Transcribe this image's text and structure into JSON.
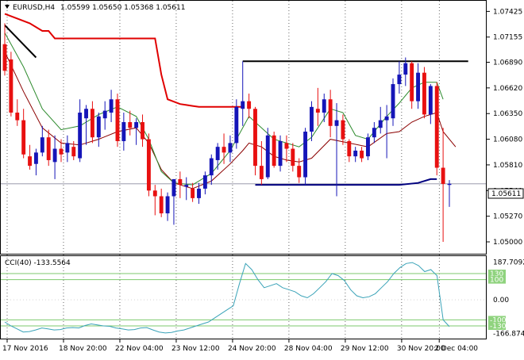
{
  "chart_data": [
    {
      "type": "candlestick",
      "title": "EURUSD,H4",
      "ohlc_header": "1.05599 1.05650 1.05368 1.05611",
      "ylim": [
        1.049,
        1.0752
      ],
      "y_ticks": [
        "1.07425",
        "1.07155",
        "1.06890",
        "1.06620",
        "1.06350",
        "1.06080",
        "1.05810",
        "1.05540",
        "1.05270",
        "1.05000"
      ],
      "current_price": "1.05611",
      "x_ticks": [
        "17 Nov 2016",
        "18 Nov 20:00",
        "22 Nov 04:00",
        "23 Nov 12:00",
        "24 Nov 20:00",
        "28 Nov 04:00",
        "29 Nov 12:00",
        "30 Nov 20:00",
        "2 Dec 04:00"
      ],
      "candles": [
        {
          "o": 1.0708,
          "h": 1.073,
          "l": 1.0675,
          "c": 1.068
        },
        {
          "o": 1.0692,
          "h": 1.07,
          "l": 1.0632,
          "c": 1.0636
        },
        {
          "o": 1.0636,
          "h": 1.065,
          "l": 1.0622,
          "c": 1.0628
        },
        {
          "o": 1.0628,
          "h": 1.064,
          "l": 1.0588,
          "c": 1.0592
        },
        {
          "o": 1.059,
          "h": 1.0602,
          "l": 1.0576,
          "c": 1.058
        },
        {
          "o": 1.0582,
          "h": 1.0598,
          "l": 1.057,
          "c": 1.0594
        },
        {
          "o": 1.0594,
          "h": 1.0622,
          "l": 1.059,
          "c": 1.061
        },
        {
          "o": 1.061,
          "h": 1.0618,
          "l": 1.058,
          "c": 1.0586
        },
        {
          "o": 1.0584,
          "h": 1.0612,
          "l": 1.0566,
          "c": 1.0598
        },
        {
          "o": 1.0598,
          "h": 1.0608,
          "l": 1.0584,
          "c": 1.0592
        },
        {
          "o": 1.0594,
          "h": 1.0612,
          "l": 1.0584,
          "c": 1.0604
        },
        {
          "o": 1.06,
          "h": 1.0606,
          "l": 1.0586,
          "c": 1.059
        },
        {
          "o": 1.0588,
          "h": 1.065,
          "l": 1.0584,
          "c": 1.0636
        },
        {
          "o": 1.063,
          "h": 1.0644,
          "l": 1.0602,
          "c": 1.064
        },
        {
          "o": 1.064,
          "h": 1.0648,
          "l": 1.0604,
          "c": 1.061
        },
        {
          "o": 1.061,
          "h": 1.0636,
          "l": 1.06,
          "c": 1.0632
        },
        {
          "o": 1.063,
          "h": 1.0648,
          "l": 1.0618,
          "c": 1.0638
        },
        {
          "o": 1.0636,
          "h": 1.066,
          "l": 1.0626,
          "c": 1.065
        },
        {
          "o": 1.065,
          "h": 1.0656,
          "l": 1.06,
          "c": 1.0606
        },
        {
          "o": 1.0606,
          "h": 1.0636,
          "l": 1.0596,
          "c": 1.0626
        },
        {
          "o": 1.0626,
          "h": 1.0638,
          "l": 1.0612,
          "c": 1.062
        },
        {
          "o": 1.062,
          "h": 1.063,
          "l": 1.0602,
          "c": 1.0626
        },
        {
          "o": 1.0626,
          "h": 1.0634,
          "l": 1.06,
          "c": 1.0608
        },
        {
          "o": 1.0608,
          "h": 1.0614,
          "l": 1.0548,
          "c": 1.0554
        },
        {
          "o": 1.0554,
          "h": 1.056,
          "l": 1.0528,
          "c": 1.0548
        },
        {
          "o": 1.0548,
          "h": 1.0556,
          "l": 1.0526,
          "c": 1.053
        },
        {
          "o": 1.053,
          "h": 1.0552,
          "l": 1.0522,
          "c": 1.0548
        },
        {
          "o": 1.0548,
          "h": 1.0566,
          "l": 1.0518,
          "c": 1.0566
        },
        {
          "o": 1.0566,
          "h": 1.0574,
          "l": 1.0546,
          "c": 1.056
        },
        {
          "o": 1.0558,
          "h": 1.0568,
          "l": 1.0544,
          "c": 1.056
        },
        {
          "o": 1.0556,
          "h": 1.0562,
          "l": 1.0542,
          "c": 1.0546
        },
        {
          "o": 1.0546,
          "h": 1.0562,
          "l": 1.054,
          "c": 1.0556
        },
        {
          "o": 1.0556,
          "h": 1.0574,
          "l": 1.055,
          "c": 1.057
        },
        {
          "o": 1.057,
          "h": 1.0592,
          "l": 1.056,
          "c": 1.0588
        },
        {
          "o": 1.0586,
          "h": 1.0604,
          "l": 1.0576,
          "c": 1.06
        },
        {
          "o": 1.06,
          "h": 1.0614,
          "l": 1.0582,
          "c": 1.0594
        },
        {
          "o": 1.0594,
          "h": 1.0612,
          "l": 1.0584,
          "c": 1.0604
        },
        {
          "o": 1.0604,
          "h": 1.065,
          "l": 1.0598,
          "c": 1.0642
        },
        {
          "o": 1.064,
          "h": 1.069,
          "l": 1.0622,
          "c": 1.0648
        },
        {
          "o": 1.0648,
          "h": 1.0656,
          "l": 1.063,
          "c": 1.064
        },
        {
          "o": 1.064,
          "h": 1.0642,
          "l": 1.057,
          "c": 1.058
        },
        {
          "o": 1.058,
          "h": 1.0606,
          "l": 1.056,
          "c": 1.0566
        },
        {
          "o": 1.0568,
          "h": 1.062,
          "l": 1.0566,
          "c": 1.0612
        },
        {
          "o": 1.0612,
          "h": 1.0616,
          "l": 1.0578,
          "c": 1.058
        },
        {
          "o": 1.058,
          "h": 1.0612,
          "l": 1.0574,
          "c": 1.0606
        },
        {
          "o": 1.0604,
          "h": 1.0612,
          "l": 1.0584,
          "c": 1.0598
        },
        {
          "o": 1.0598,
          "h": 1.0604,
          "l": 1.0574,
          "c": 1.058
        },
        {
          "o": 1.058,
          "h": 1.0588,
          "l": 1.0562,
          "c": 1.0568
        },
        {
          "o": 1.0568,
          "h": 1.062,
          "l": 1.056,
          "c": 1.0616
        },
        {
          "o": 1.0616,
          "h": 1.0648,
          "l": 1.0606,
          "c": 1.0642
        },
        {
          "o": 1.064,
          "h": 1.0662,
          "l": 1.0622,
          "c": 1.0636
        },
        {
          "o": 1.0636,
          "h": 1.0656,
          "l": 1.0626,
          "c": 1.065
        },
        {
          "o": 1.065,
          "h": 1.066,
          "l": 1.061,
          "c": 1.0622
        },
        {
          "o": 1.0622,
          "h": 1.0646,
          "l": 1.0548,
          "c": 1.0628
        },
        {
          "o": 1.0628,
          "h": 1.0634,
          "l": 1.0602,
          "c": 1.0608
        },
        {
          "o": 1.0606,
          "h": 1.0608,
          "l": 1.0584,
          "c": 1.059
        },
        {
          "o": 1.059,
          "h": 1.06,
          "l": 1.0584,
          "c": 1.0596
        },
        {
          "o": 1.0596,
          "h": 1.06,
          "l": 1.0584,
          "c": 1.0588
        },
        {
          "o": 1.059,
          "h": 1.0614,
          "l": 1.0586,
          "c": 1.061
        },
        {
          "o": 1.061,
          "h": 1.0626,
          "l": 1.0604,
          "c": 1.062
        },
        {
          "o": 1.062,
          "h": 1.0642,
          "l": 1.0614,
          "c": 1.0628
        },
        {
          "o": 1.0628,
          "h": 1.0644,
          "l": 1.0588,
          "c": 1.0632
        },
        {
          "o": 1.063,
          "h": 1.0672,
          "l": 1.0622,
          "c": 1.0666
        },
        {
          "o": 1.0666,
          "h": 1.069,
          "l": 1.0656,
          "c": 1.0676
        },
        {
          "o": 1.0676,
          "h": 1.0694,
          "l": 1.0664,
          "c": 1.0688
        },
        {
          "o": 1.0688,
          "h": 1.069,
          "l": 1.064,
          "c": 1.0648
        },
        {
          "o": 1.0648,
          "h": 1.0688,
          "l": 1.064,
          "c": 1.0678
        },
        {
          "o": 1.0678,
          "h": 1.0684,
          "l": 1.063,
          "c": 1.0634
        },
        {
          "o": 1.0634,
          "h": 1.0666,
          "l": 1.0624,
          "c": 1.0664
        },
        {
          "o": 1.0664,
          "h": 1.0668,
          "l": 1.057,
          "c": 1.0578
        },
        {
          "o": 1.0578,
          "h": 1.062,
          "l": 1.05,
          "c": 1.0561
        },
        {
          "o": 1.05599,
          "h": 1.0565,
          "l": 1.05368,
          "c": 1.05611
        }
      ],
      "overlays": [
        {
          "name": "red-stepped-line",
          "color": "#e00000",
          "points": [
            [
              0,
              1.074
            ],
            [
              2,
              1.0735
            ],
            [
              4,
              1.073
            ],
            [
              6,
              1.0722
            ],
            [
              7,
              1.0722
            ],
            [
              8,
              1.0714
            ],
            [
              24,
              1.0714
            ],
            [
              25,
              1.0676
            ],
            [
              26,
              1.065
            ],
            [
              28,
              1.0645
            ],
            [
              29,
              1.0644
            ],
            [
              30,
              1.0643
            ],
            [
              31,
              1.0642
            ],
            [
              38,
              1.0642
            ]
          ]
        },
        {
          "name": "dark-red-ma",
          "color": "#8b0000",
          "points": [
            [
              0,
              1.07
            ],
            [
              3,
              1.0658
            ],
            [
              6,
              1.062
            ],
            [
              9,
              1.0604
            ],
            [
              12,
              1.0602
            ],
            [
              15,
              1.0608
            ],
            [
              18,
              1.0616
            ],
            [
              21,
              1.062
            ],
            [
              23,
              1.0604
            ],
            [
              25,
              1.0576
            ],
            [
              27,
              1.0562
            ],
            [
              30,
              1.0556
            ],
            [
              33,
              1.0564
            ],
            [
              36,
              1.0582
            ],
            [
              38,
              1.0596
            ],
            [
              39,
              1.0604
            ],
            [
              41,
              1.06
            ],
            [
              43,
              1.059
            ],
            [
              45,
              1.0586
            ],
            [
              47,
              1.0584
            ],
            [
              49,
              1.0588
            ],
            [
              52,
              1.0608
            ],
            [
              55,
              1.0604
            ],
            [
              58,
              1.06
            ],
            [
              61,
              1.0614
            ],
            [
              63,
              1.0616
            ],
            [
              65,
              1.0626
            ],
            [
              67,
              1.0632
            ],
            [
              69,
              1.0636
            ],
            [
              70,
              1.0616
            ],
            [
              72,
              1.06
            ]
          ]
        },
        {
          "name": "green-ma",
          "color": "#2e8b2e",
          "points": [
            [
              0,
              1.072
            ],
            [
              3,
              1.0684
            ],
            [
              6,
              1.064
            ],
            [
              9,
              1.0618
            ],
            [
              12,
              1.0622
            ],
            [
              15,
              1.0634
            ],
            [
              18,
              1.0642
            ],
            [
              21,
              1.0632
            ],
            [
              23,
              1.0608
            ],
            [
              25,
              1.0574
            ],
            [
              27,
              1.0562
            ],
            [
              30,
              1.056
            ],
            [
              33,
              1.0572
            ],
            [
              36,
              1.0596
            ],
            [
              38,
              1.062
            ],
            [
              39,
              1.0632
            ],
            [
              41,
              1.062
            ],
            [
              43,
              1.0608
            ],
            [
              45,
              1.0604
            ],
            [
              47,
              1.06
            ],
            [
              49,
              1.061
            ],
            [
              51,
              1.063
            ],
            [
              52,
              1.064
            ],
            [
              54,
              1.0636
            ],
            [
              56,
              1.0612
            ],
            [
              58,
              1.0608
            ],
            [
              61,
              1.0632
            ],
            [
              63,
              1.0646
            ],
            [
              65,
              1.0662
            ],
            [
              67,
              1.0668
            ],
            [
              69,
              1.0668
            ],
            [
              70,
              1.065
            ]
          ]
        },
        {
          "name": "navy-support-line",
          "color": "#00007f",
          "points": [
            [
              40,
              1.056
            ],
            [
              63,
              1.056
            ],
            [
              66,
              1.0562
            ],
            [
              68,
              1.0566
            ],
            [
              69,
              1.0566
            ]
          ]
        },
        {
          "name": "black-resistance-line",
          "color": "#000000",
          "points": [
            [
              38,
              1.069
            ],
            [
              74,
              1.069
            ]
          ]
        },
        {
          "name": "black-trend-line",
          "color": "#000000",
          "points": [
            [
              0,
              1.0728
            ],
            [
              5,
              1.0694
            ]
          ]
        }
      ]
    },
    {
      "type": "line",
      "title": "CCI(40) -133.5564",
      "ylim": [
        -185,
        205
      ],
      "y_ticks": [
        "187.7092",
        "0.00",
        "-166.8747"
      ],
      "level_labels": [
        "130",
        "100",
        "-100",
        "-130"
      ],
      "levels": [
        130,
        100,
        -100,
        -130
      ],
      "values": [
        -110,
        -130,
        -145,
        -160,
        -158,
        -150,
        -140,
        -145,
        -150,
        -148,
        -140,
        -138,
        -140,
        -128,
        -120,
        -125,
        -130,
        -132,
        -140,
        -145,
        -150,
        -148,
        -140,
        -138,
        -150,
        -160,
        -165,
        -162,
        -155,
        -150,
        -140,
        -130,
        -120,
        -110,
        -90,
        -70,
        -50,
        -30,
        80,
        180,
        150,
        100,
        60,
        70,
        80,
        60,
        50,
        40,
        20,
        10,
        30,
        60,
        90,
        130,
        120,
        95,
        50,
        20,
        10,
        15,
        30,
        60,
        90,
        130,
        160,
        180,
        185,
        170,
        140,
        150,
        120,
        -100,
        -133.5564
      ]
    }
  ]
}
